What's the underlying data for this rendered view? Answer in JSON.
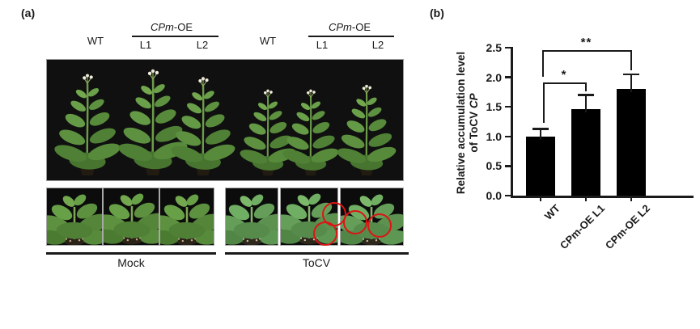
{
  "panel_a": {
    "label": "(a)",
    "header_groups": [
      {
        "control_label": "WT",
        "oe_gene": "CPm",
        "oe_suffix": "-OE",
        "line1": "L1",
        "line2": "L2"
      },
      {
        "control_label": "WT",
        "oe_gene": "CPm",
        "oe_suffix": "-OE",
        "line1": "L1",
        "line2": "L2"
      }
    ],
    "treatment_labels": {
      "mock": "Mock",
      "tocv": "ToCV"
    },
    "photo_colors": {
      "background": "#101010",
      "leaf_green": "#5d9140",
      "stem_green": "#6e9c4b",
      "flower_white": "#f2efdf",
      "pot_dark": "#221b12",
      "annotation_circle_red": "#dd1414"
    }
  },
  "panel_b": {
    "label": "(b)"
  },
  "chart_data": {
    "type": "bar",
    "title": "",
    "ylabel_line1": "Relative accumulation level",
    "ylabel_line2_prefix": "of ToCV ",
    "ylabel_gene_italic": "CP",
    "categories": [
      "WT",
      "CPm-OE L1",
      "CPm-OE L2"
    ],
    "values": [
      1.0,
      1.46,
      1.8
    ],
    "errors_plus": [
      0.13,
      0.24,
      0.25
    ],
    "ytick_labels": [
      "0.0",
      "0.5",
      "1.0",
      "1.5",
      "2.0",
      "2.5"
    ],
    "ylim": [
      0,
      2.5
    ],
    "grid": "off",
    "legend": "none",
    "bar_color": "#000000",
    "axis_color": "#1a1a1a",
    "significance": [
      {
        "between": [
          "WT",
          "CPm-OE L1"
        ],
        "label": "*"
      },
      {
        "between": [
          "WT",
          "CPm-OE L2"
        ],
        "label": "**"
      }
    ]
  }
}
